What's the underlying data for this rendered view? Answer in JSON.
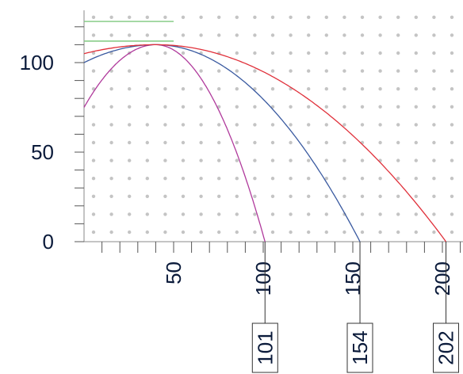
{
  "chart_data": {
    "type": "line",
    "title": "",
    "xlabel": "",
    "ylabel": "",
    "xlim": [
      0,
      210
    ],
    "ylim": [
      0,
      125
    ],
    "grid": "dots",
    "x_ticks": [
      50,
      100,
      150,
      200
    ],
    "x_tick_labels": [
      "50",
      "100",
      "150",
      "200"
    ],
    "y_ticks": [
      0,
      50,
      100
    ],
    "y_tick_labels": [
      "0",
      "50",
      "100"
    ],
    "series": [
      {
        "color": "#b03a9c",
        "x0": 0,
        "y0": 75,
        "peak_x": 40,
        "peak_y": 110,
        "x_end": 101
      },
      {
        "color": "#3a5aa0",
        "x0": 0,
        "y0": 100,
        "peak_x": 40,
        "peak_y": 110,
        "x_end": 154
      },
      {
        "color": "#e0303a",
        "x0": 0,
        "y0": 105,
        "peak_x": 40,
        "peak_y": 110,
        "x_end": 202
      }
    ],
    "reference_lines": [
      {
        "color": "#7ec87e",
        "y": 123,
        "x_from": 0,
        "x_to": 50
      },
      {
        "color": "#7ec87e",
        "y": 112,
        "x_from": 0,
        "x_to": 50
      }
    ],
    "callouts": [
      {
        "x": 101,
        "label": "101"
      },
      {
        "x": 154,
        "label": "154"
      },
      {
        "x": 202,
        "label": "202"
      }
    ]
  }
}
